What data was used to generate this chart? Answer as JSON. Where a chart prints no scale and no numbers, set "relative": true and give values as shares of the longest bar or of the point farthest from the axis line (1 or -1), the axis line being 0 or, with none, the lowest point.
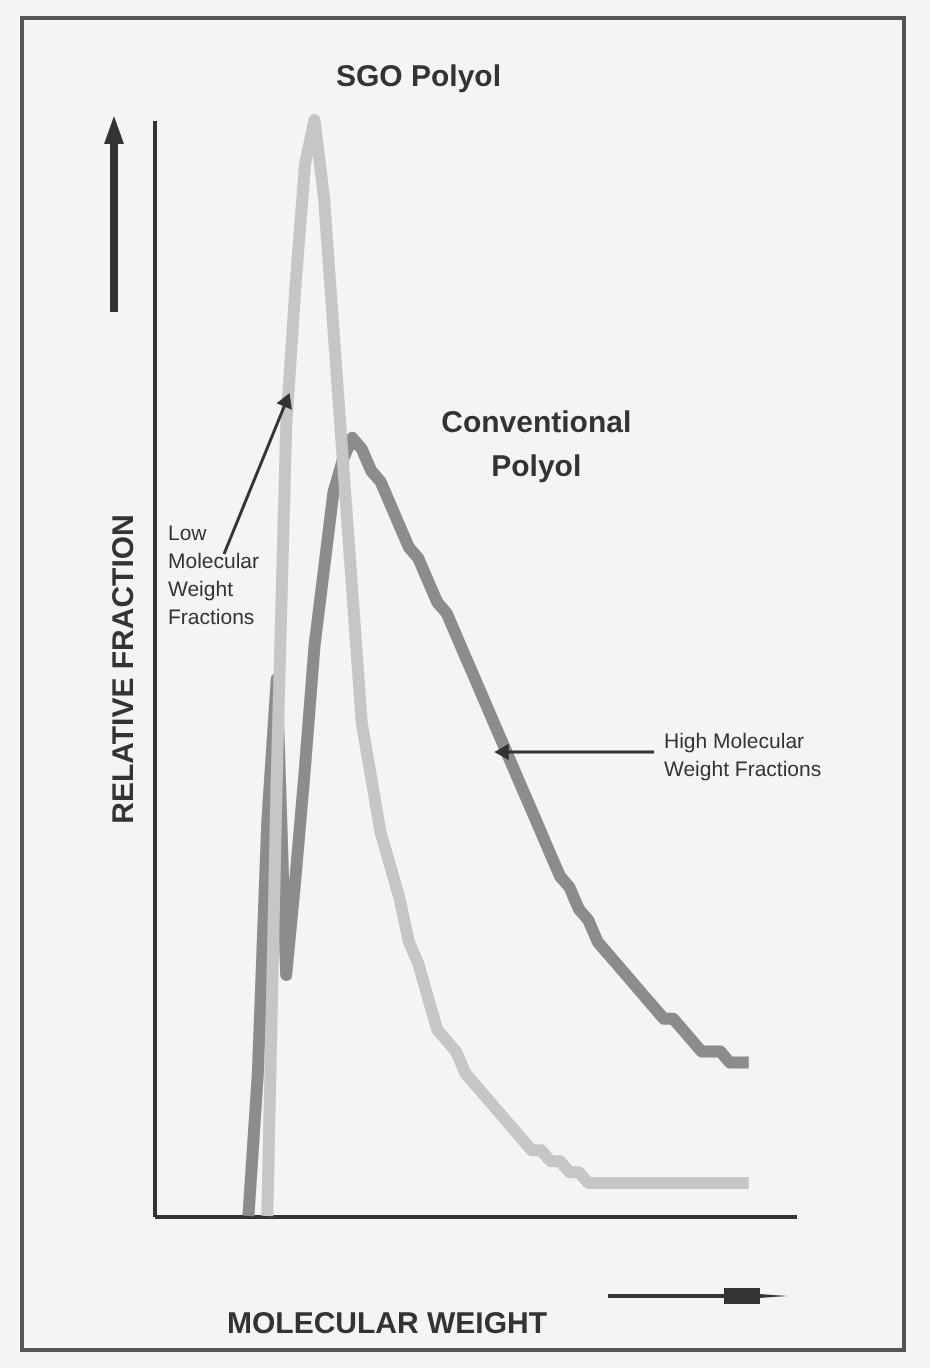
{
  "chart_data": {
    "type": "line",
    "relative": true,
    "xlabel": "MOLECULAR WEIGHT",
    "ylabel": "RELATIVE FRACTION",
    "line_style": "solid",
    "categories": [
      null,
      null,
      null,
      null,
      null,
      null,
      null,
      null,
      null,
      null,
      null,
      null,
      null,
      null,
      null,
      null,
      null,
      null,
      null,
      null,
      null,
      null,
      null,
      null,
      null,
      null,
      null,
      null,
      null,
      null,
      null,
      null,
      null,
      null,
      null,
      null,
      null,
      null,
      null,
      null,
      null,
      null,
      null,
      null,
      null,
      null,
      null,
      null,
      null,
      null,
      null,
      null,
      null,
      null,
      null,
      null,
      null,
      null,
      null,
      null,
      null,
      null,
      null,
      null,
      null,
      null,
      null,
      null,
      null
    ],
    "series": [
      {
        "name": "Conventional Polyol",
        "color": "#8c8c8c",
        "values": [
          null,
          null,
          null,
          null,
          null,
          null,
          null,
          null,
          null,
          null,
          0,
          0.13,
          0.36,
          0.49,
          0.22,
          0.31,
          0.41,
          0.52,
          0.59,
          0.66,
          0.69,
          0.71,
          0.7,
          0.68,
          0.67,
          0.65,
          0.63,
          0.61,
          0.6,
          0.58,
          0.56,
          0.55,
          0.53,
          0.51,
          0.49,
          0.47,
          0.45,
          0.43,
          0.41,
          0.39,
          0.37,
          0.35,
          0.33,
          0.31,
          0.3,
          0.28,
          0.27,
          0.25,
          0.24,
          0.23,
          0.22,
          0.21,
          0.2,
          0.19,
          0.18,
          0.18,
          0.17,
          0.16,
          0.15,
          0.15,
          0.15,
          0.14,
          0.14,
          0.14,
          null,
          null,
          null,
          null,
          null
        ]
      },
      {
        "name": "SGO Polyol",
        "color": "#c6c6c6",
        "values": [
          null,
          null,
          null,
          null,
          null,
          null,
          null,
          null,
          null,
          null,
          null,
          null,
          0,
          0.4,
          0.72,
          0.85,
          0.96,
          1,
          0.93,
          0.81,
          0.69,
          0.57,
          0.45,
          0.4,
          0.35,
          0.32,
          0.29,
          0.25,
          0.23,
          0.2,
          0.17,
          0.16,
          0.15,
          0.13,
          0.12,
          0.11,
          0.1,
          0.09,
          0.08,
          0.07,
          0.06,
          0.06,
          0.05,
          0.05,
          0.04,
          0.04,
          0.03,
          0.03,
          0.03,
          0.03,
          0.03,
          0.03,
          0.03,
          0.03,
          0.03,
          0.03,
          0.03,
          0.03,
          0.03,
          0.03,
          0.03,
          0.03,
          0.03,
          0.03,
          null,
          null,
          null,
          null,
          null
        ]
      }
    ],
    "annotations": [
      "Low Molecular Weight Fractions",
      "High Molecular Weight Fractions"
    ]
  }
}
